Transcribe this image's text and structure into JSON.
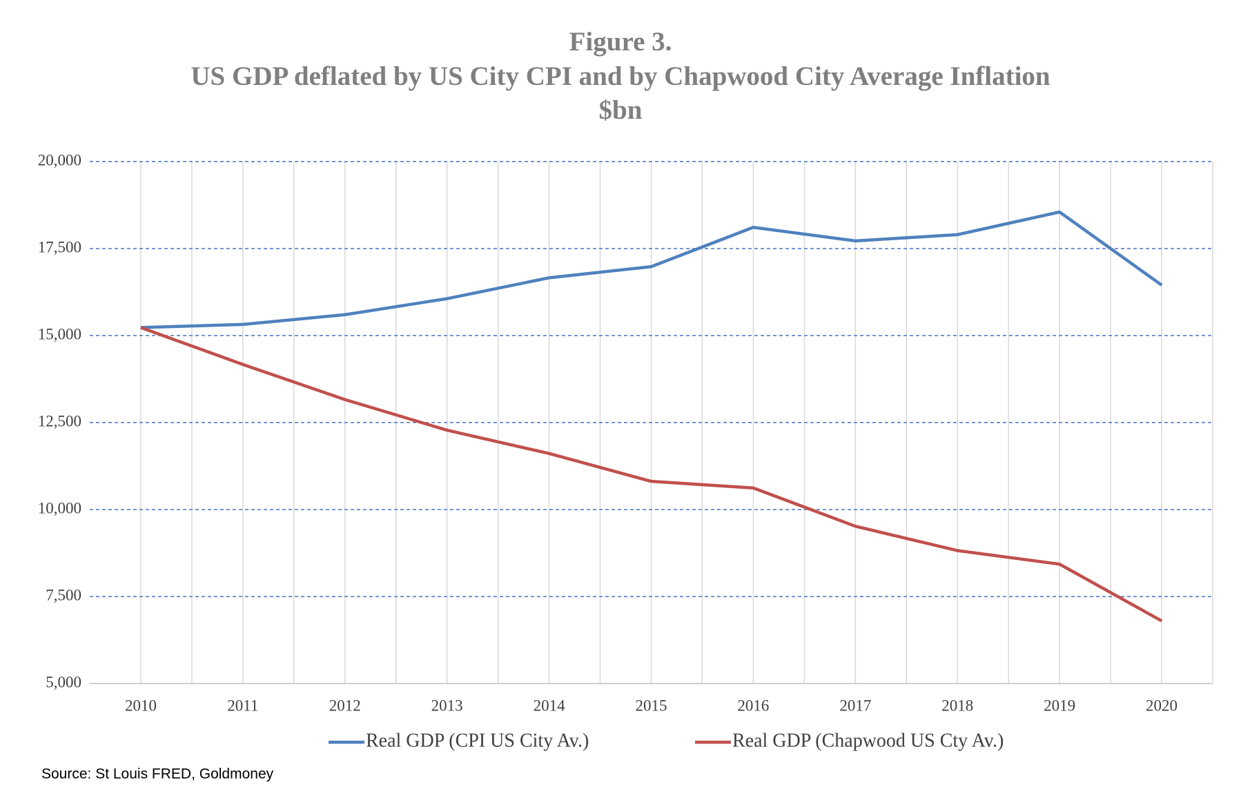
{
  "chart_data": {
    "type": "line",
    "title": "Figure 3.",
    "subtitle": "US GDP deflated by US City CPI and by Chapwood City Average Inflation",
    "y_label": "$bn",
    "categories": [
      "2010",
      "2011",
      "2012",
      "2013",
      "2014",
      "2015",
      "2016",
      "2017",
      "2018",
      "2019",
      "2020"
    ],
    "series": [
      {
        "name": "Real GDP (CPI US City Av.)",
        "color": "#4f81bd",
        "values": [
          15230,
          15320,
          15600,
          16060,
          16660,
          16980,
          18110,
          17720,
          17900,
          18550,
          16450
        ]
      },
      {
        "name": "Real GDP (Chapwood US Cty Av.)",
        "color": "#c0504d",
        "values": [
          15230,
          14170,
          13160,
          12280,
          11610,
          10810,
          10620,
          9520,
          8820,
          8430,
          6800
        ]
      }
    ],
    "ylim": [
      5000,
      20000
    ],
    "yticks": [
      {
        "value": 5000,
        "label": "5,000"
      },
      {
        "value": 7500,
        "label": "7,500"
      },
      {
        "value": 10000,
        "label": "10,000"
      },
      {
        "value": 12500,
        "label": "12,500"
      },
      {
        "value": 15000,
        "label": "15,000"
      },
      {
        "value": 17500,
        "label": "17,500"
      },
      {
        "value": 20000,
        "label": "20,000"
      }
    ],
    "grid": true,
    "legend": "bottom",
    "source": "Source: St Louis FRED, Goldmoney"
  }
}
